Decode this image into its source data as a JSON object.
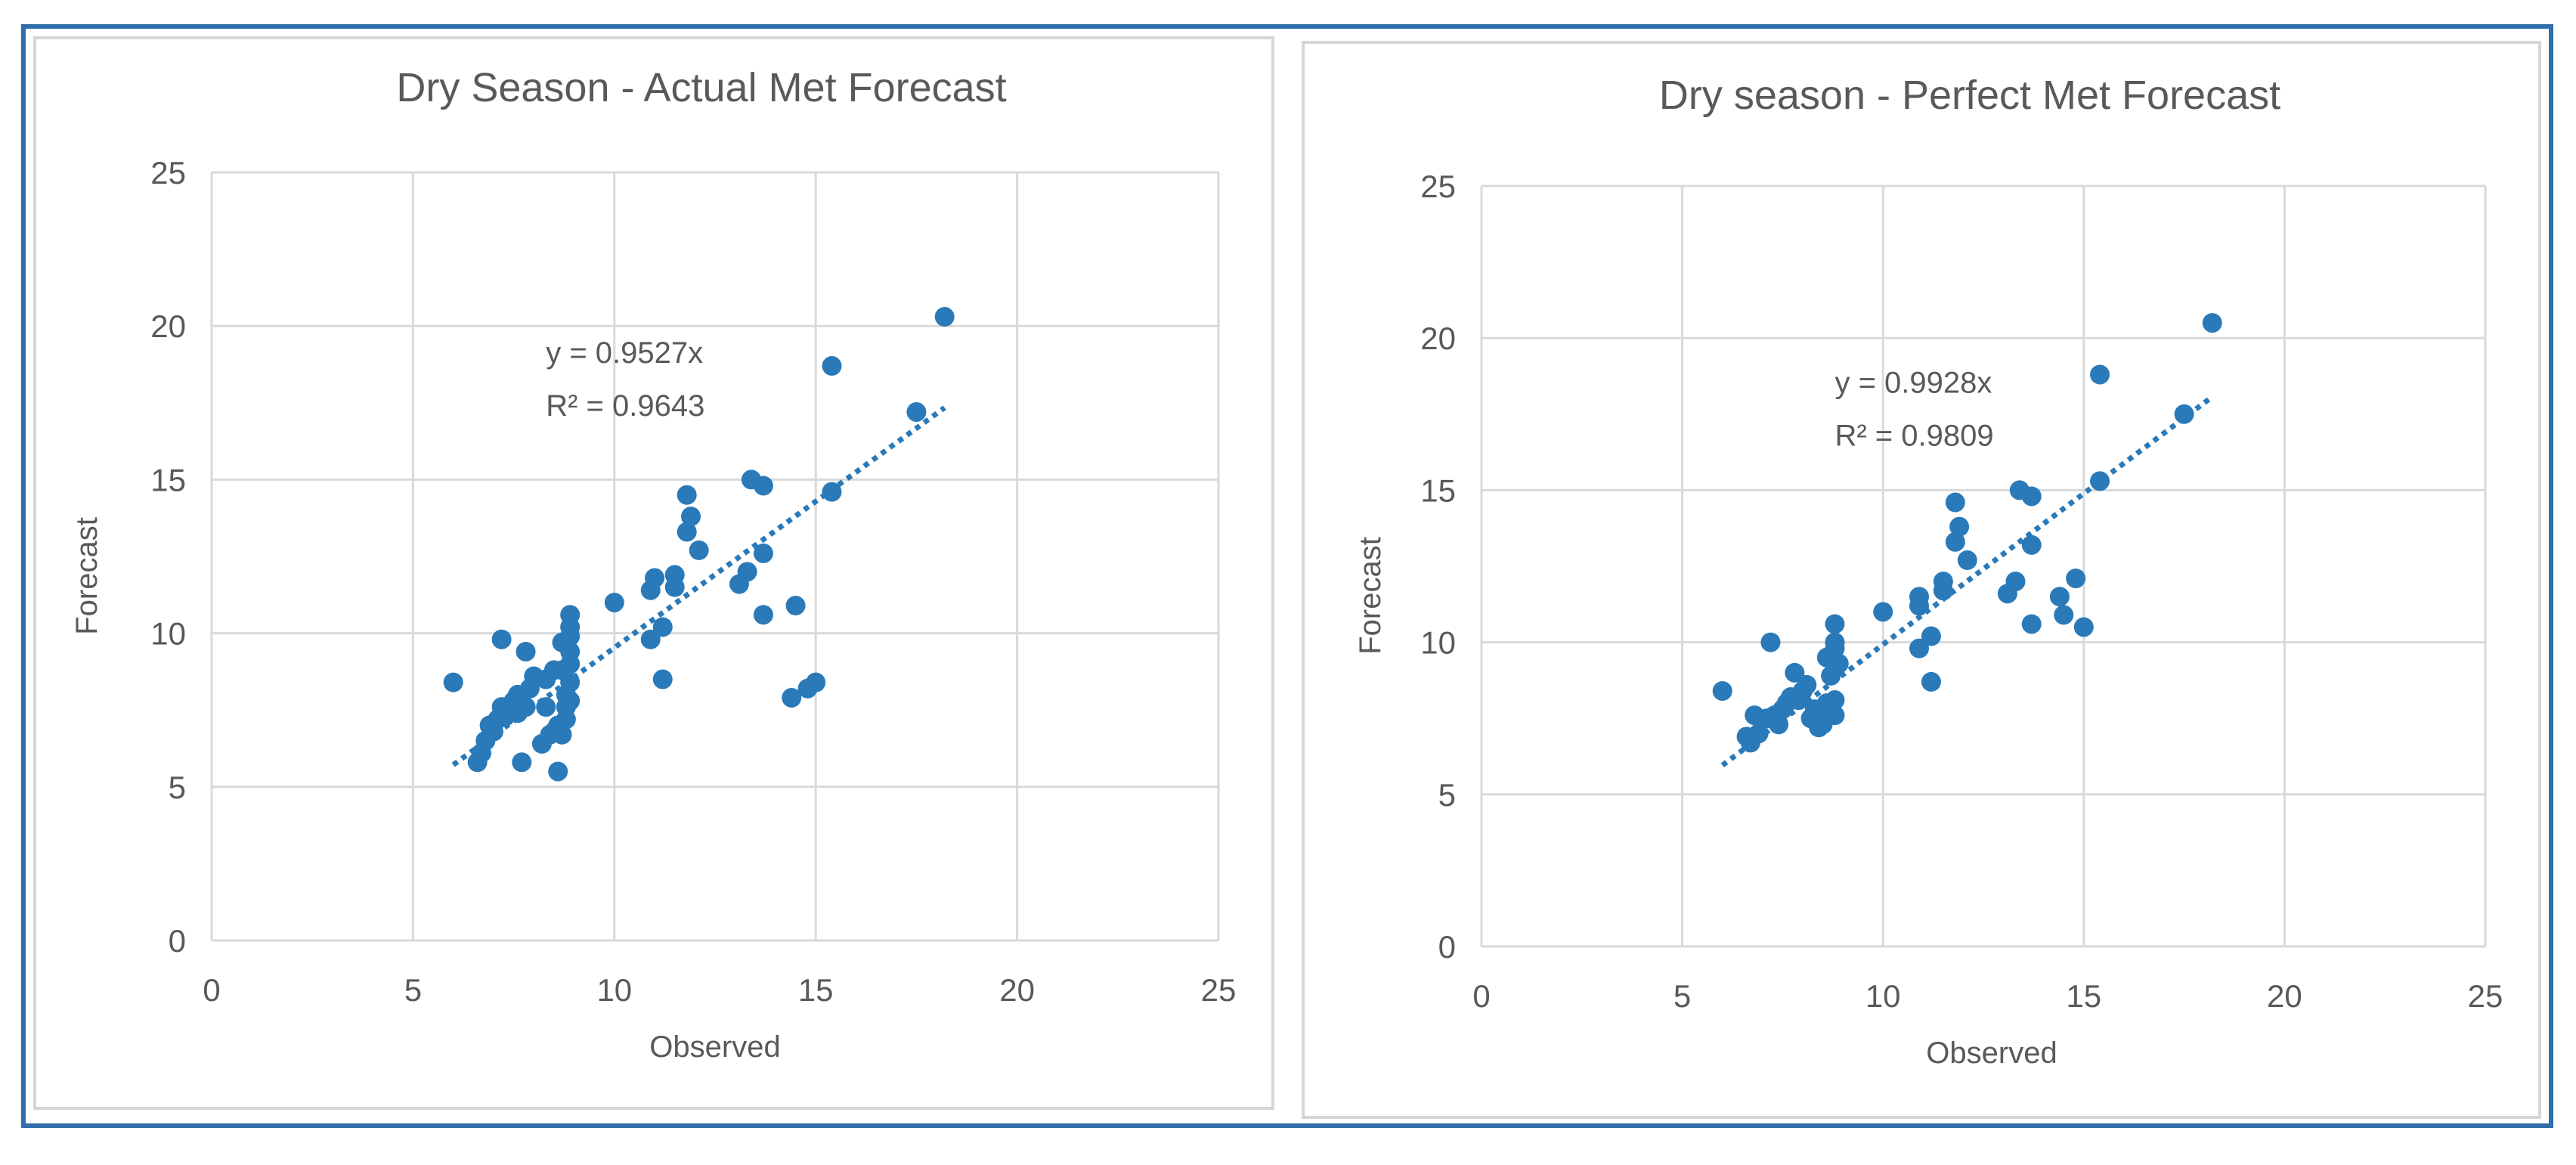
{
  "colors": {
    "frame": "#2f6ea8",
    "panel_border": "#d6d6d6",
    "grid": "#d9d9d9",
    "point": "#2a7ab9",
    "trendline": "#2a7ab9",
    "text": "#595959"
  },
  "chart_data": [
    {
      "type": "scatter",
      "title": "Dry Season - Actual  Met Forecast",
      "xlabel": "Observed",
      "ylabel": "Forecast",
      "xlim": [
        0,
        25
      ],
      "ylim": [
        0,
        25
      ],
      "xticks": [
        "0",
        "5",
        "10",
        "15",
        "20",
        "25"
      ],
      "yticks": [
        "0",
        "5",
        "10",
        "15",
        "20",
        "25"
      ],
      "grid": true,
      "trendline": {
        "slope": 0.9527,
        "x_range": [
          6.0,
          18.2
        ],
        "equation": "y = 0.9527x",
        "r_squared": "R² = 0.9643",
        "anchor": [
          8.3,
          18.8
        ]
      },
      "points": [
        [
          6.0,
          8.4
        ],
        [
          6.6,
          5.8
        ],
        [
          6.7,
          6.1
        ],
        [
          6.8,
          6.5
        ],
        [
          6.9,
          7.0
        ],
        [
          7.0,
          6.8
        ],
        [
          7.1,
          7.2
        ],
        [
          7.2,
          7.6
        ],
        [
          7.2,
          9.8
        ],
        [
          7.3,
          7.3
        ],
        [
          7.4,
          7.5
        ],
        [
          7.5,
          7.8
        ],
        [
          7.6,
          8.0
        ],
        [
          7.6,
          7.4
        ],
        [
          7.7,
          5.8
        ],
        [
          7.8,
          7.6
        ],
        [
          7.8,
          9.4
        ],
        [
          7.9,
          8.2
        ],
        [
          8.0,
          8.6
        ],
        [
          8.2,
          6.4
        ],
        [
          8.3,
          8.5
        ],
        [
          8.3,
          7.6
        ],
        [
          8.4,
          6.7
        ],
        [
          8.5,
          6.8
        ],
        [
          8.5,
          8.8
        ],
        [
          8.6,
          5.5
        ],
        [
          8.6,
          7.0
        ],
        [
          8.7,
          8.8
        ],
        [
          8.7,
          9.7
        ],
        [
          8.7,
          6.7
        ],
        [
          8.8,
          7.2
        ],
        [
          8.8,
          8.0
        ],
        [
          8.8,
          7.6
        ],
        [
          8.9,
          9.4
        ],
        [
          8.9,
          9.9
        ],
        [
          8.9,
          10.2
        ],
        [
          8.9,
          10.6
        ],
        [
          8.9,
          9.0
        ],
        [
          8.9,
          8.4
        ],
        [
          8.9,
          7.8
        ],
        [
          10.0,
          11.0
        ],
        [
          10.9,
          9.8
        ],
        [
          10.9,
          11.4
        ],
        [
          11.0,
          11.8
        ],
        [
          11.2,
          8.5
        ],
        [
          11.2,
          10.2
        ],
        [
          11.5,
          11.5
        ],
        [
          11.5,
          11.9
        ],
        [
          11.8,
          14.5
        ],
        [
          11.8,
          13.3
        ],
        [
          11.9,
          13.8
        ],
        [
          12.1,
          12.7
        ],
        [
          13.1,
          11.6
        ],
        [
          13.3,
          12.0
        ],
        [
          13.4,
          15.0
        ],
        [
          13.7,
          12.6
        ],
        [
          13.7,
          14.8
        ],
        [
          13.7,
          10.6
        ],
        [
          14.4,
          7.9
        ],
        [
          14.5,
          10.9
        ],
        [
          14.8,
          8.2
        ],
        [
          15.0,
          8.4
        ],
        [
          15.4,
          14.6
        ],
        [
          15.4,
          18.7
        ],
        [
          17.5,
          17.2
        ],
        [
          18.2,
          20.3
        ]
      ]
    },
    {
      "type": "scatter",
      "title": "Dry season - Perfect Met Forecast",
      "xlabel": "Observed",
      "ylabel": "Forecast",
      "xlim": [
        0,
        25
      ],
      "ylim": [
        0,
        25
      ],
      "xticks": [
        "0",
        "5",
        "10",
        "15",
        "20",
        "25"
      ],
      "yticks": [
        "0",
        "5",
        "10",
        "15",
        "20",
        "25"
      ],
      "grid": true,
      "trendline": {
        "slope": 0.9928,
        "x_range": [
          6.0,
          18.2
        ],
        "equation": "y = 0.9928x",
        "r_squared": "R² = 0.9809",
        "anchor": [
          8.8,
          18.2
        ]
      },
      "points": [
        [
          6.0,
          8.4
        ],
        [
          6.6,
          6.9
        ],
        [
          6.7,
          6.7
        ],
        [
          6.8,
          7.6
        ],
        [
          6.9,
          7.0
        ],
        [
          7.1,
          7.5
        ],
        [
          7.2,
          10.0
        ],
        [
          7.3,
          7.6
        ],
        [
          7.4,
          7.3
        ],
        [
          7.5,
          7.8
        ],
        [
          7.6,
          8.0
        ],
        [
          7.7,
          8.2
        ],
        [
          7.8,
          9.0
        ],
        [
          7.9,
          8.1
        ],
        [
          8.0,
          8.4
        ],
        [
          8.1,
          8.6
        ],
        [
          8.2,
          7.5
        ],
        [
          8.3,
          7.8
        ],
        [
          8.4,
          7.2
        ],
        [
          8.5,
          7.3
        ],
        [
          8.5,
          7.7
        ],
        [
          8.6,
          9.5
        ],
        [
          8.6,
          8.0
        ],
        [
          8.7,
          7.8
        ],
        [
          8.7,
          8.9
        ],
        [
          8.8,
          7.6
        ],
        [
          8.8,
          8.1
        ],
        [
          8.8,
          9.2
        ],
        [
          8.8,
          10.0
        ],
        [
          8.8,
          10.6
        ],
        [
          8.8,
          9.8
        ],
        [
          8.9,
          9.3
        ],
        [
          10.0,
          11.0
        ],
        [
          10.9,
          9.8
        ],
        [
          10.9,
          11.2
        ],
        [
          10.9,
          11.5
        ],
        [
          11.2,
          8.7
        ],
        [
          11.2,
          10.2
        ],
        [
          11.5,
          11.7
        ],
        [
          11.5,
          12.0
        ],
        [
          11.8,
          14.6
        ],
        [
          11.8,
          13.3
        ],
        [
          11.9,
          13.8
        ],
        [
          12.1,
          12.7
        ],
        [
          13.1,
          11.6
        ],
        [
          13.3,
          12.0
        ],
        [
          13.4,
          15.0
        ],
        [
          13.7,
          13.2
        ],
        [
          13.7,
          14.8
        ],
        [
          13.7,
          10.6
        ],
        [
          14.4,
          11.5
        ],
        [
          14.5,
          10.9
        ],
        [
          14.8,
          12.1
        ],
        [
          15.0,
          10.5
        ],
        [
          15.4,
          15.3
        ],
        [
          15.4,
          18.8
        ],
        [
          17.5,
          17.5
        ],
        [
          18.2,
          20.5
        ]
      ]
    }
  ]
}
